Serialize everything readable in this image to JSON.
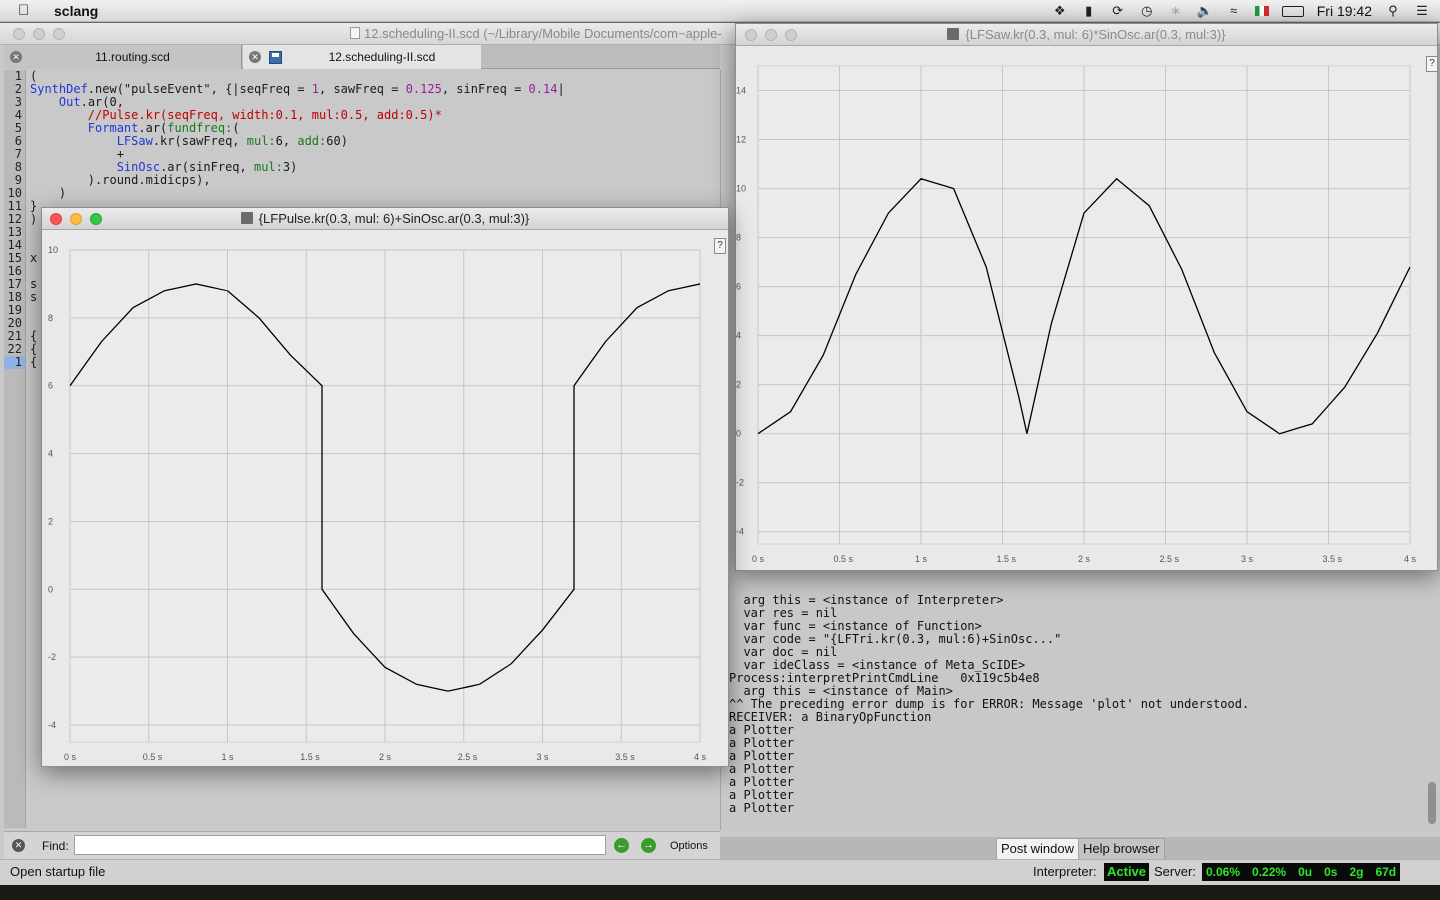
{
  "menubar": {
    "app_name": "sclang",
    "clock": "Fri 19:42"
  },
  "ide": {
    "window_title": "12.scheduling-II.scd (~/Library/Mobile Documents/com~apple-",
    "tabs": [
      {
        "label": "11.routing.scd"
      },
      {
        "label": "12.scheduling-II.scd"
      }
    ],
    "line_numbers": [
      "1",
      "2",
      "3",
      "4",
      "5",
      "6",
      "7",
      "8",
      "9",
      "10",
      "11",
      "12",
      "13",
      "14",
      "15",
      "16",
      "17",
      "18",
      "19",
      "20",
      "21",
      "22",
      "1"
    ],
    "find": {
      "label": "Find:",
      "value": "",
      "options_label": "Options"
    },
    "status": {
      "startup": "Open startup file",
      "interpreter_label": "Interpreter:",
      "interpreter_state": "Active",
      "server_label": "Server:",
      "server_stats": [
        "0.06%",
        "0.22%",
        "0u",
        "0s",
        "2g",
        "67d"
      ]
    }
  },
  "post_window": {
    "lines": [
      "  arg this = <instance of Interpreter>",
      "  var res = nil",
      "  var func = <instance of Function>",
      "  var code = \"{LFTri.kr(0.3, mul:6)+SinOsc...\"",
      "  var doc = nil",
      "  var ideClass = <instance of Meta_ScIDE>",
      "Process:interpretPrintCmdLine   0x119c5b4e8",
      "  arg this = <instance of Main>",
      "^^ The preceding error dump is for ERROR: Message 'plot' not understood.",
      "RECEIVER: a BinaryOpFunction",
      "a Plotter",
      "a Plotter",
      "a Plotter",
      "a Plotter",
      "a Plotter",
      "a Plotter",
      "a Plotter"
    ],
    "tabs": [
      "Post window",
      "Help browser"
    ]
  },
  "plot_front": {
    "title": "{LFPulse.kr(0.3, mul: 6)+SinOsc.ar(0.3, mul:3)}",
    "help": "?"
  },
  "plot_back": {
    "title": "{LFSaw.kr(0.3, mul: 6)*SinOsc.ar(0.3, mul:3)}",
    "help": "?"
  },
  "chart_data": [
    {
      "type": "line",
      "title": "{LFPulse.kr(0.3, mul: 6)+SinOsc.ar(0.3, mul:3)}",
      "x_ticks": [
        "0 s",
        "0.5 s",
        "1 s",
        "1.5 s",
        "2 s",
        "2.5 s",
        "3 s",
        "3.5 s",
        "4 s"
      ],
      "y_ticks": [
        "10",
        "8",
        "6",
        "4",
        "2",
        "0",
        "-2",
        "-4"
      ],
      "xlim": [
        0,
        4
      ],
      "ylim": [
        -4.5,
        10
      ],
      "grid": true,
      "series": [
        {
          "x": [
            0,
            0.2,
            0.4,
            0.6,
            0.8,
            1.0,
            1.2,
            1.4,
            1.6,
            1.6,
            1.8,
            2.0,
            2.2,
            2.4,
            2.6,
            2.8,
            3.0,
            3.2,
            3.2,
            3.4,
            3.6,
            3.8,
            4.0
          ],
          "y": [
            6.0,
            7.3,
            8.3,
            8.8,
            9.0,
            8.8,
            8.0,
            6.9,
            6.0,
            0.0,
            -1.3,
            -2.3,
            -2.8,
            -3.0,
            -2.8,
            -2.2,
            -1.2,
            0.0,
            6.0,
            7.3,
            8.3,
            8.8,
            9.0
          ]
        }
      ]
    },
    {
      "type": "line",
      "title": "{LFSaw.kr(0.3, mul: 6)*SinOsc.ar(0.3, mul:3)}",
      "x_ticks": [
        "0 s",
        "0.5 s",
        "1 s",
        "1.5 s",
        "2 s",
        "2.5 s",
        "3 s",
        "3.5 s",
        "4 s"
      ],
      "y_ticks": [
        "14",
        "12",
        "10",
        "8",
        "6",
        "4",
        "2",
        "0",
        "-2",
        "-4"
      ],
      "xlim": [
        0,
        4
      ],
      "ylim": [
        -4.5,
        15
      ],
      "grid": true,
      "series": [
        {
          "x": [
            0,
            0.2,
            0.4,
            0.6,
            0.8,
            1.0,
            1.2,
            1.4,
            1.6,
            1.65,
            1.8,
            2.0,
            2.2,
            2.4,
            2.6,
            2.8,
            3.0,
            3.2,
            3.4,
            3.6,
            3.8,
            4.0
          ],
          "y": [
            0.0,
            0.9,
            3.2,
            6.5,
            9.0,
            10.4,
            10.0,
            6.8,
            1.5,
            0.0,
            4.5,
            9.0,
            10.4,
            9.3,
            6.7,
            3.3,
            0.9,
            0.0,
            0.4,
            1.9,
            4.1,
            6.8
          ]
        }
      ]
    }
  ]
}
